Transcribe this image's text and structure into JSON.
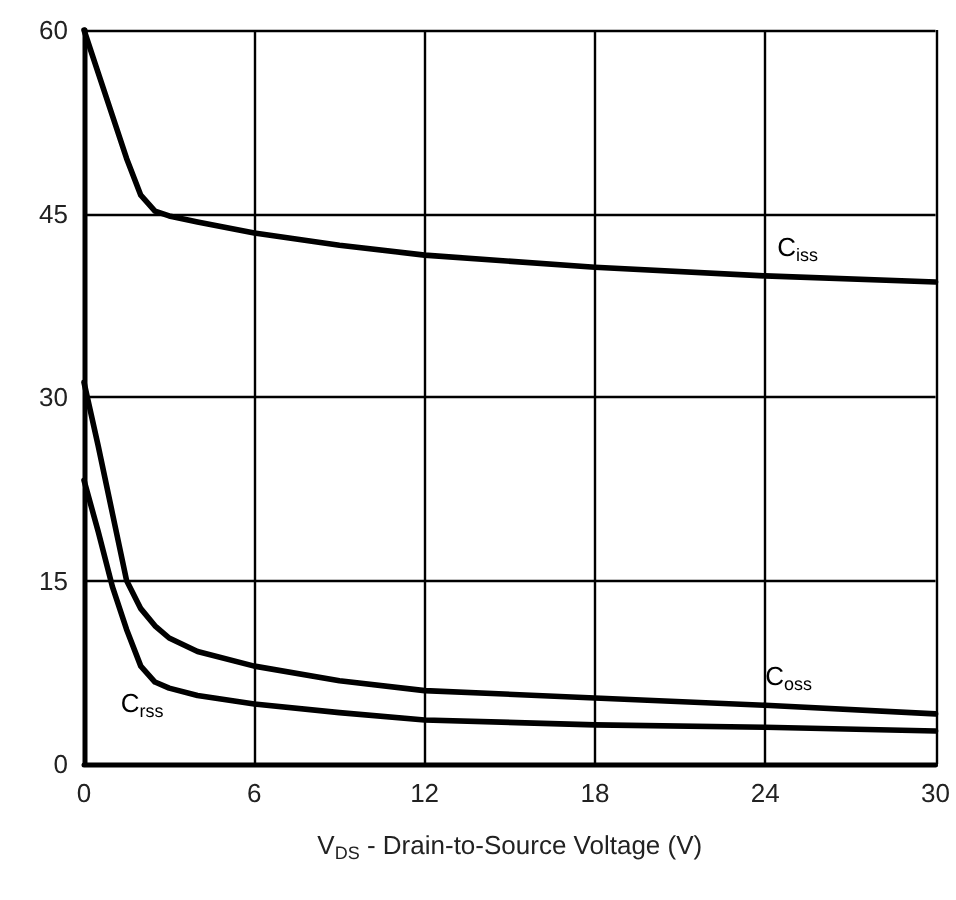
{
  "chart_data": {
    "type": "line",
    "xlabel": "V$_{DS}$ - Drain-to-Source Voltage (V)",
    "x": [
      0,
      0.5,
      1,
      1.5,
      2,
      2.5,
      3,
      4,
      6,
      9,
      12,
      18,
      24,
      30
    ],
    "series": [
      {
        "name": "C$_{iss}$",
        "color": "#000000",
        "values": [
          60,
          56.5,
          53,
          49.5,
          46.5,
          45.2,
          44.8,
          44.3,
          43.4,
          42.4,
          41.6,
          40.6,
          39.9,
          39.4
        ]
      },
      {
        "name": "C$_{oss}$",
        "color": "#000000",
        "values": [
          31.2,
          26,
          20.5,
          15,
          12.7,
          11.3,
          10.3,
          9.2,
          8.0,
          6.8,
          6.0,
          5.4,
          4.8,
          4.1
        ]
      },
      {
        "name": "C$_{rss}$",
        "color": "#000000",
        "values": [
          23.2,
          19,
          14.5,
          11,
          8,
          6.7,
          6.2,
          5.6,
          4.9,
          4.2,
          3.6,
          3.2,
          3.0,
          2.7
        ]
      }
    ],
    "xlim": [
      0,
      30
    ],
    "xticks": [
      0,
      6,
      12,
      18,
      24,
      30
    ],
    "ylim": [
      0,
      60
    ],
    "yticks": [
      0,
      15,
      30,
      45,
      60
    ],
    "grid": true,
    "marker": "none",
    "line_style": "solid"
  }
}
